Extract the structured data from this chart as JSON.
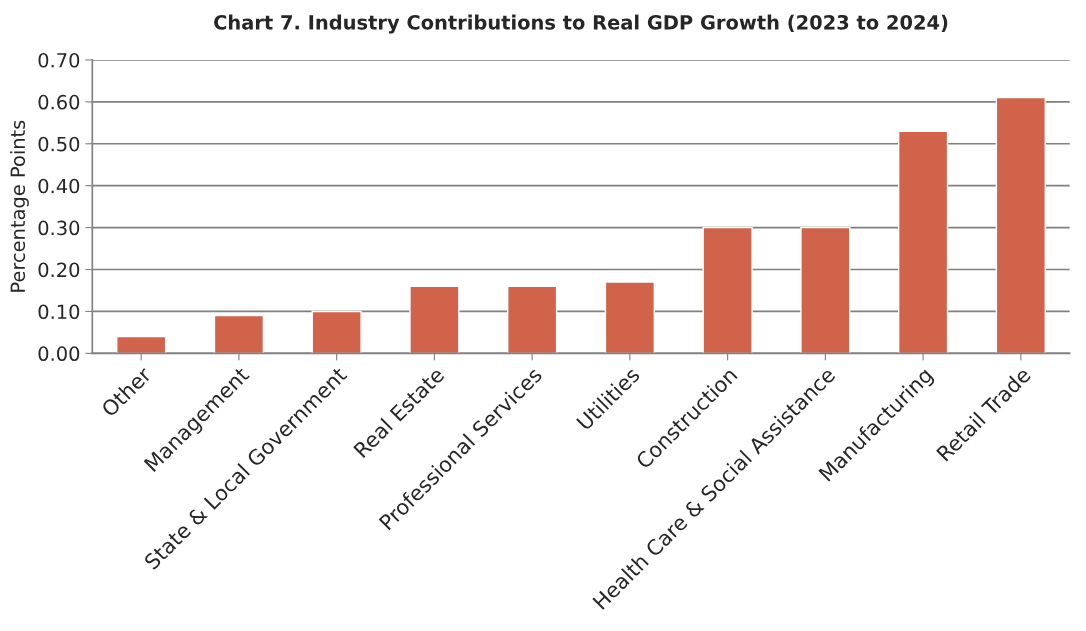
{
  "chart_data": {
    "type": "bar",
    "title": "Chart 7. Industry Contributions to Real GDP Growth (2023 to 2024)",
    "ylabel": "Percentage Points",
    "categories": [
      "Other",
      "Management",
      "State & Local Government",
      "Real Estate",
      "Professional Services",
      "Utilities",
      "Construction",
      "Health Care & Social Assistance",
      "Manufacturing",
      "Retail Trade"
    ],
    "values": [
      0.04,
      0.09,
      0.1,
      0.16,
      0.16,
      0.17,
      0.3,
      0.3,
      0.53,
      0.61
    ],
    "color": "#d0634a",
    "ylim": [
      0,
      0.7
    ],
    "yticks": [
      {
        "value": 0,
        "label": "0.00"
      },
      {
        "value": 0.1,
        "label": "0.10"
      },
      {
        "value": 0.2,
        "label": "0.20"
      },
      {
        "value": 0.3,
        "label": "0.30"
      },
      {
        "value": 0.4,
        "label": "0.40"
      },
      {
        "value": 0.5,
        "label": "0.50"
      },
      {
        "value": 0.6,
        "label": "0.60"
      },
      {
        "value": 0.7,
        "label": "0.70"
      }
    ],
    "grid": "y",
    "legend": false
  }
}
